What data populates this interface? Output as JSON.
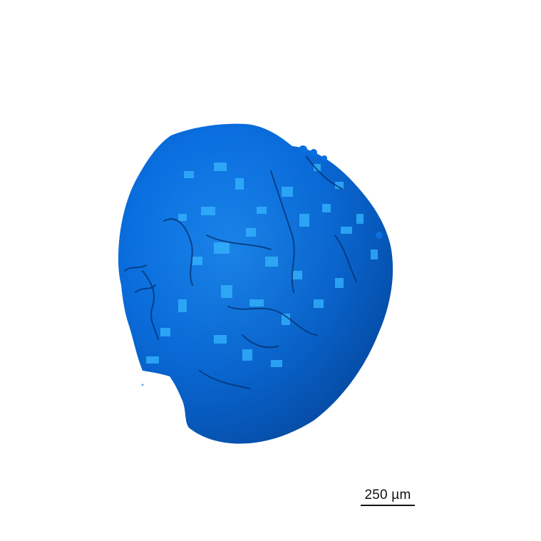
{
  "scale_bar": {
    "label": "250 µm"
  },
  "specimen": {
    "icon": "3d-surface-render",
    "colors": {
      "base": "#0a6fe0",
      "highlight": "#36b6ff",
      "shadow": "#04306e"
    }
  }
}
